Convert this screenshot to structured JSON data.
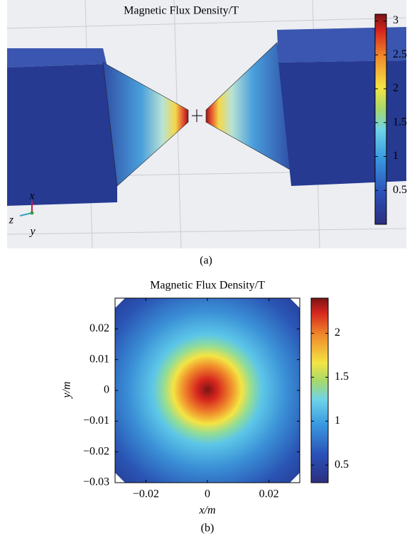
{
  "chart_data": [
    {
      "type": "field3d",
      "title": "Magnetic Flux Density/T",
      "caption": "(a)",
      "axis_labels": [
        "x",
        "z",
        "y"
      ],
      "clim": [
        0,
        3.1
      ],
      "cticks": [
        0.5,
        1,
        1.5,
        2,
        2.5,
        3
      ]
    },
    {
      "type": "heatmap",
      "title": "Magnetic Flux Density/T",
      "caption": "(b)",
      "x_label": "x/m",
      "y_label": "y/m",
      "xlim": [
        -0.03,
        0.03
      ],
      "ylim": [
        -0.03,
        0.03
      ],
      "xticks": [
        {
          "value": -0.02,
          "label": "−0.02"
        },
        0,
        0.02
      ],
      "yticks": [
        {
          "value": -0.03,
          "label": "−0.03"
        },
        {
          "value": -0.02,
          "label": "−0.02"
        },
        {
          "value": -0.01,
          "label": "−0.01"
        },
        0,
        0.01,
        0.02
      ],
      "clim": [
        0.3,
        2.4
      ],
      "cticks": [
        0.5,
        1,
        1.5,
        2
      ]
    }
  ]
}
